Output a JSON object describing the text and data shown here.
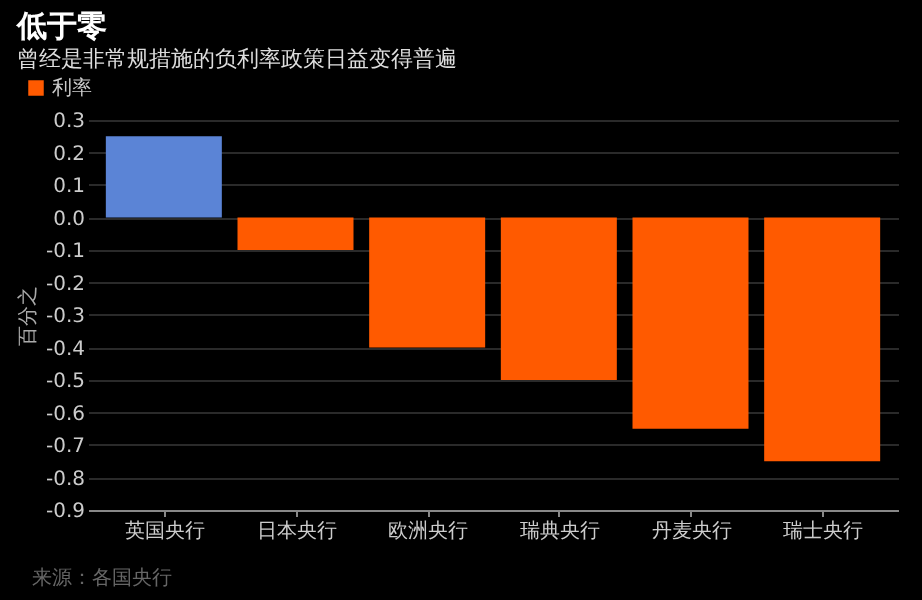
{
  "chart_data": {
    "type": "bar",
    "title": "低于零",
    "subtitle": "曾经是非常规措施的负利率政策日益变得普遍",
    "categories": [
      "英国央行",
      "日本央行",
      "欧洲央行",
      "瑞典央行",
      "丹麦央行",
      "瑞士央行"
    ],
    "series": [
      {
        "name": "利率",
        "color": "#ff5a00",
        "colors": [
          "#5b84d6",
          "#ff5a00",
          "#ff5a00",
          "#ff5a00",
          "#ff5a00",
          "#ff5a00"
        ],
        "values": [
          0.25,
          -0.1,
          -0.4,
          -0.5,
          -0.65,
          -0.75
        ]
      }
    ],
    "ylabel": "百分之",
    "ylim": [
      -0.9,
      0.3
    ],
    "yticks": [
      {
        "value": 0.3,
        "label": "0.3"
      },
      {
        "value": 0.2,
        "label": "0.2"
      },
      {
        "value": 0.1,
        "label": "0.1"
      },
      {
        "value": 0,
        "label": "0.0"
      },
      {
        "value": -0.1,
        "label": "-0.1"
      },
      {
        "value": -0.2,
        "label": "-0.2"
      },
      {
        "value": -0.3,
        "label": "-0.3"
      },
      {
        "value": -0.4,
        "label": "-0.4"
      },
      {
        "value": -0.5,
        "label": "-0.5"
      },
      {
        "value": -0.6,
        "label": "-0.6"
      },
      {
        "value": -0.7,
        "label": "-0.7"
      },
      {
        "value": -0.8,
        "label": "-0.8"
      },
      {
        "value": -0.9,
        "label": "-0.9"
      }
    ],
    "grid": "y",
    "legend": "top left",
    "annotations": [
      "来源：各国央行"
    ]
  }
}
